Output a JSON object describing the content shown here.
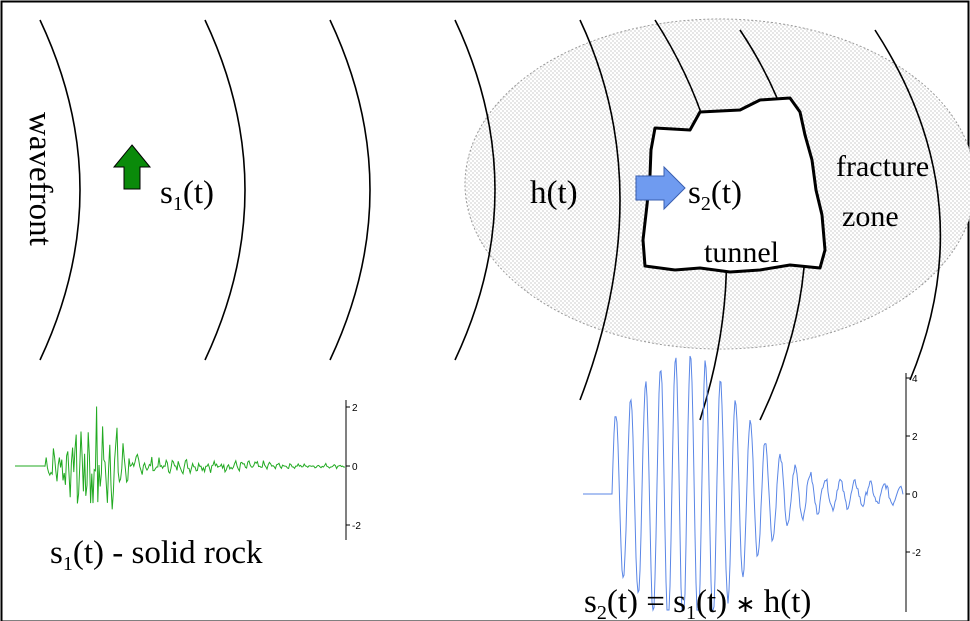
{
  "labels": {
    "wavefront": "wavefront",
    "s1_base": "s",
    "s1_sub": "1",
    "s1_arg": "(t)",
    "h": "h(t)",
    "s2_base": "s",
    "s2_sub": "2",
    "s2_arg": "(t)",
    "tunnel": "tunnel",
    "fracture_line1": "fracture",
    "fracture_line2": "zone",
    "solid_rock_base": "s",
    "solid_rock_sub": "1",
    "solid_rock_rest": "(t) - solid rock",
    "eq_s": "s",
    "eq_sub2": "2",
    "eq_mid": "(t) = s",
    "eq_sub1": "1",
    "eq_rest1": "(t) ",
    "eq_op": "∗",
    "eq_rest2": " h(t)"
  },
  "colors": {
    "green_arrow": "#0a8a0a",
    "blue_arrow": "#6f9bf0",
    "trace_s1": "#22aa22",
    "trace_s2": "#5a86e6",
    "fracture_fill": "#e6e6e6"
  },
  "plots": {
    "s1": {
      "ticks": [
        "2",
        "0",
        "-2"
      ]
    },
    "s2": {
      "ticks": [
        "4",
        "2",
        "0",
        "-2"
      ]
    }
  }
}
